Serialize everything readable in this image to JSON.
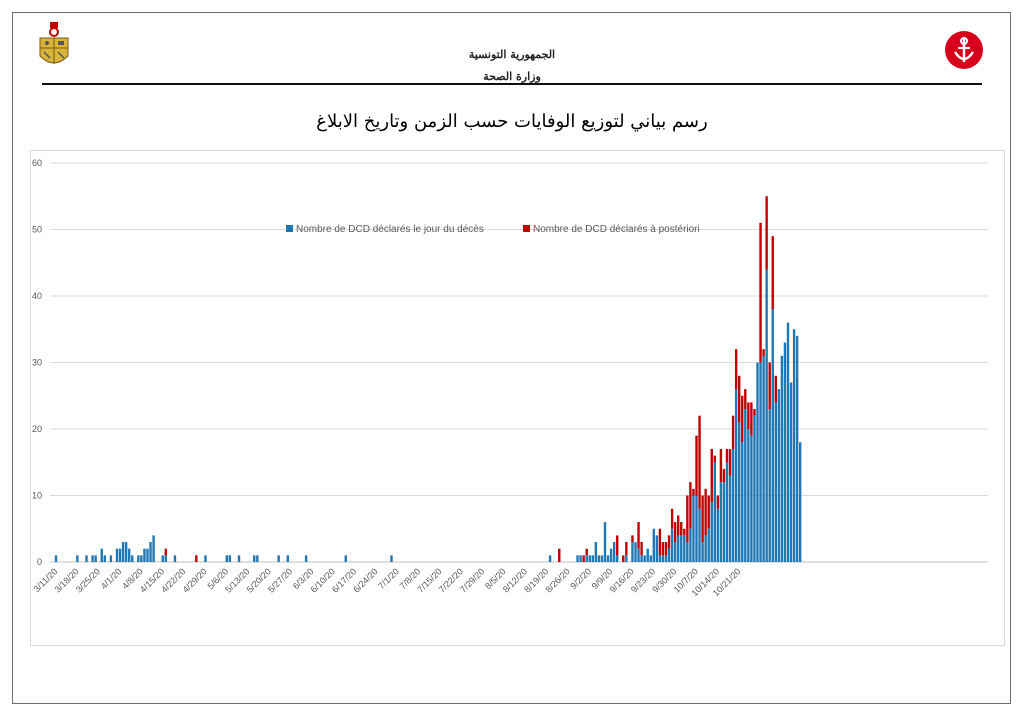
{
  "header": {
    "republic": "الجمهورية التونسية",
    "ministry": "وزارة الصحة"
  },
  "colors": {
    "declared_same_day": "#1f77b4",
    "declared_later": "#c00000",
    "grid": "#d9d9d9",
    "rule": "#111111"
  },
  "icons": {
    "left": "tunisia-coat-of-arms-icon",
    "right": "health-ministry-logo-icon"
  },
  "chart_data": {
    "type": "bar",
    "stacked": true,
    "title": "رسم بياني لتوزيع الوفايات حسب الزمن وتاريخ الابلاغ",
    "xlabel": "",
    "ylabel": "",
    "ylim": [
      0,
      60
    ],
    "yticks": [
      0,
      10,
      20,
      30,
      40,
      50,
      60
    ],
    "grid": true,
    "legend_position": "top-center",
    "x_start": "3/11/20",
    "xtick_labels": [
      "3/11/20",
      "3/18/20",
      "3/25/20",
      "4/1/20",
      "4/8/20",
      "4/15/20",
      "4/22/20",
      "4/29/20",
      "5/6/20",
      "5/13/20",
      "5/20/20",
      "5/27/20",
      "6/3/20",
      "6/10/20",
      "6/17/20",
      "6/24/20",
      "7/1/20",
      "7/8/20",
      "7/15/20",
      "7/22/20",
      "7/29/20",
      "8/5/20",
      "8/12/20",
      "8/19/20",
      "8/26/20",
      "9/2/20",
      "9/9/20",
      "9/16/20",
      "9/23/20",
      "9/30/20",
      "10/7/20",
      "10/14/20",
      "10/21/20"
    ],
    "series": [
      {
        "name": "Nombre de DCD déclarés le jour du décès",
        "values": [
          1,
          0,
          0,
          0,
          0,
          0,
          0,
          1,
          0,
          0,
          1,
          0,
          1,
          1,
          0,
          2,
          1,
          0,
          1,
          0,
          2,
          2,
          3,
          3,
          2,
          1,
          0,
          1,
          1,
          2,
          2,
          3,
          4,
          0,
          0,
          1,
          1,
          0,
          0,
          1,
          0,
          0,
          0,
          0,
          0,
          0,
          0,
          0,
          0,
          1,
          0,
          0,
          0,
          0,
          0,
          0,
          1,
          1,
          0,
          0,
          1,
          0,
          0,
          0,
          0,
          1,
          1,
          0,
          0,
          0,
          0,
          0,
          0,
          1,
          0,
          0,
          1,
          0,
          0,
          0,
          0,
          0,
          1,
          0,
          0,
          0,
          0,
          0,
          0,
          0,
          0,
          0,
          0,
          0,
          0,
          1,
          0,
          0,
          0,
          0,
          0,
          0,
          0,
          0,
          0,
          0,
          0,
          0,
          0,
          0,
          1,
          0,
          0,
          0,
          0,
          0,
          0,
          0,
          0,
          0,
          0,
          0,
          0,
          0,
          0,
          0,
          0,
          0,
          0,
          0,
          0,
          0,
          0,
          0,
          0,
          0,
          0,
          0,
          0,
          0,
          0,
          0,
          0,
          0,
          0,
          0,
          0,
          0,
          0,
          0,
          0,
          0,
          0,
          0,
          0,
          0,
          0,
          0,
          0,
          0,
          0,
          0,
          1,
          0,
          0,
          0,
          0,
          0,
          0,
          0,
          0,
          1,
          1,
          0,
          1,
          1,
          1,
          3,
          1,
          1,
          6,
          1,
          2,
          3,
          1,
          0,
          0,
          1,
          0,
          3,
          3,
          2,
          1,
          1,
          2,
          1,
          5,
          4,
          1,
          1,
          1,
          2,
          5,
          3,
          4,
          4,
          4,
          3,
          5,
          10,
          10,
          8,
          3,
          4,
          5,
          9,
          15,
          8,
          12,
          12,
          15,
          13,
          17,
          26,
          21,
          18,
          23,
          20,
          19,
          22,
          30,
          30,
          31,
          44,
          23,
          38,
          24,
          26,
          31,
          33,
          36,
          27,
          35,
          34,
          18
        ],
        "color": "#1f77b4"
      },
      {
        "name": "Nombre de DCD déclarés à postériori",
        "values": [
          0,
          0,
          0,
          0,
          0,
          0,
          0,
          0,
          0,
          0,
          0,
          0,
          0,
          0,
          0,
          0,
          0,
          0,
          0,
          0,
          0,
          0,
          0,
          0,
          0,
          0,
          0,
          0,
          0,
          0,
          0,
          0,
          0,
          0,
          0,
          0,
          1,
          0,
          0,
          0,
          0,
          0,
          0,
          0,
          0,
          0,
          1,
          0,
          0,
          0,
          0,
          0,
          0,
          0,
          0,
          0,
          0,
          0,
          0,
          0,
          0,
          0,
          0,
          0,
          0,
          0,
          0,
          0,
          0,
          0,
          0,
          0,
          0,
          0,
          0,
          0,
          0,
          0,
          0,
          0,
          0,
          0,
          0,
          0,
          0,
          0,
          0,
          0,
          0,
          0,
          0,
          0,
          0,
          0,
          0,
          0,
          0,
          0,
          0,
          0,
          0,
          0,
          0,
          0,
          0,
          0,
          0,
          0,
          0,
          0,
          0,
          0,
          0,
          0,
          0,
          0,
          0,
          0,
          0,
          0,
          0,
          0,
          0,
          0,
          0,
          0,
          0,
          0,
          0,
          0,
          0,
          0,
          0,
          0,
          0,
          0,
          0,
          0,
          0,
          0,
          0,
          0,
          0,
          0,
          0,
          0,
          0,
          0,
          0,
          0,
          0,
          0,
          0,
          0,
          0,
          0,
          0,
          0,
          0,
          0,
          0,
          0,
          0,
          0,
          0,
          2,
          0,
          0,
          0,
          0,
          0,
          0,
          0,
          1,
          1,
          0,
          0,
          0,
          0,
          0,
          0,
          0,
          0,
          0,
          3,
          0,
          1,
          2,
          0,
          1,
          0,
          4,
          2,
          0,
          0,
          0,
          0,
          0,
          4,
          2,
          2,
          2,
          3,
          3,
          3,
          2,
          1,
          7,
          7,
          1,
          9,
          14,
          7,
          7,
          5,
          8,
          1,
          2,
          5,
          2,
          2,
          4,
          5,
          6,
          7,
          7,
          3,
          4,
          5,
          1,
          0,
          21,
          1,
          11,
          7,
          11,
          4,
          0,
          0
        ],
        "color": "#c00000"
      }
    ]
  }
}
